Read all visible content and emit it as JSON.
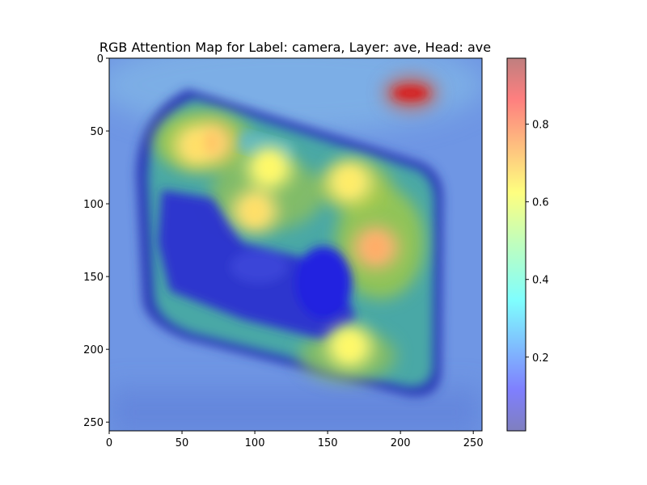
{
  "chart_data": {
    "type": "heatmap",
    "title": "RGB Attention Map for Label: camera, Layer: ave, Head: ave",
    "xlabel": "",
    "ylabel": "",
    "xlim": [
      0,
      256
    ],
    "ylim": [
      256,
      0
    ],
    "x_ticks": [
      0,
      50,
      100,
      150,
      200,
      250
    ],
    "y_ticks": [
      0,
      50,
      100,
      150,
      200,
      250
    ],
    "colorbar": {
      "colormap": "jet",
      "alpha": 0.5,
      "range": [
        0.01,
        0.97
      ],
      "ticks": [
        0.2,
        0.4,
        0.6,
        0.8
      ],
      "tick_labels": [
        "0.2",
        "0.4",
        "0.6",
        "0.8"
      ]
    },
    "hotspots": [
      {
        "x": 207,
        "y": 24,
        "value": 0.97
      },
      {
        "x": 183,
        "y": 130,
        "value": 0.74
      },
      {
        "x": 70,
        "y": 58,
        "value": 0.7
      },
      {
        "x": 60,
        "y": 60,
        "value": 0.66
      },
      {
        "x": 110,
        "y": 75,
        "value": 0.62
      },
      {
        "x": 165,
        "y": 85,
        "value": 0.64
      },
      {
        "x": 100,
        "y": 105,
        "value": 0.66
      },
      {
        "x": 165,
        "y": 198,
        "value": 0.62
      }
    ],
    "background_value": 0.26,
    "object_region_value": 0.5,
    "low_regions": [
      {
        "x": 60,
        "y": 125,
        "value": 0.04
      },
      {
        "x": 140,
        "y": 158,
        "value": 0.04
      },
      {
        "x": 125,
        "y": 185,
        "value": 0.12
      }
    ]
  }
}
